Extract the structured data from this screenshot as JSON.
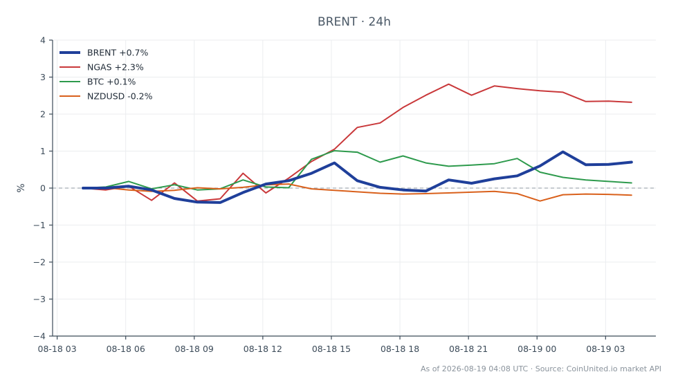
{
  "chart_data": {
    "type": "line",
    "title": "BRENT · 24h",
    "ylabel": "%",
    "xlabel": "",
    "ylim": [
      -4,
      4
    ],
    "y_ticks": [
      -4,
      -3,
      -2,
      -1,
      0,
      1,
      2,
      3,
      4
    ],
    "y_tick_labels": [
      "−4",
      "−3",
      "−2",
      "−1",
      "0",
      "1",
      "2",
      "3",
      "4"
    ],
    "x_tick_labels": [
      "08-18 03",
      "08-18 06",
      "08-18 09",
      "08-18 12",
      "08-18 15",
      "08-18 18",
      "08-18 21",
      "08-19 00",
      "08-19 03"
    ],
    "x_ticks": [
      "2026-08-18 03:00",
      "2026-08-18 06:00",
      "2026-08-18 09:00",
      "2026-08-18 12:00",
      "2026-08-18 15:00",
      "2026-08-18 18:00",
      "2026-08-18 21:00",
      "2026-08-19 00:00",
      "2026-08-19 03:00"
    ],
    "xlim": [
      "2026-08-18 02:48",
      "2026-08-19 05:12"
    ],
    "x": [
      "2026-08-18 04:08",
      "2026-08-18 05:08",
      "2026-08-18 06:08",
      "2026-08-18 07:08",
      "2026-08-18 08:08",
      "2026-08-18 09:08",
      "2026-08-18 10:08",
      "2026-08-18 11:08",
      "2026-08-18 12:08",
      "2026-08-18 13:08",
      "2026-08-18 14:08",
      "2026-08-18 15:08",
      "2026-08-18 16:08",
      "2026-08-18 17:08",
      "2026-08-18 18:08",
      "2026-08-18 19:08",
      "2026-08-18 20:08",
      "2026-08-18 21:08",
      "2026-08-18 22:08",
      "2026-08-18 23:08",
      "2026-08-19 00:08",
      "2026-08-19 01:08",
      "2026-08-19 02:08",
      "2026-08-19 03:08",
      "2026-08-19 04:08"
    ],
    "series": [
      {
        "name": "BRENT +0.7%",
        "color": "#1f3f9a",
        "width": 4,
        "values": [
          0.0,
          0.0,
          0.05,
          -0.05,
          -0.28,
          -0.38,
          -0.39,
          -0.12,
          0.11,
          0.2,
          0.4,
          0.68,
          0.2,
          0.02,
          -0.05,
          -0.08,
          0.22,
          0.13,
          0.25,
          0.33,
          0.6,
          0.98,
          0.63,
          0.64,
          0.7
        ]
      },
      {
        "name": "NGAS +2.3%",
        "color": "#c9383a",
        "width": 2,
        "values": [
          0.0,
          -0.05,
          0.05,
          -0.33,
          0.14,
          -0.35,
          -0.29,
          0.4,
          -0.13,
          0.27,
          0.72,
          1.05,
          1.64,
          1.76,
          2.18,
          2.51,
          2.81,
          2.51,
          2.76,
          2.69,
          2.63,
          2.59,
          2.34,
          2.35,
          2.32
        ]
      },
      {
        "name": "BTC +0.1%",
        "color": "#2d9a4c",
        "width": 2,
        "values": [
          0.0,
          0.03,
          0.18,
          -0.02,
          0.09,
          -0.05,
          -0.02,
          0.22,
          0.03,
          0.01,
          0.78,
          1.01,
          0.97,
          0.7,
          0.87,
          0.68,
          0.59,
          0.62,
          0.66,
          0.8,
          0.43,
          0.29,
          0.22,
          0.18,
          0.14
        ]
      },
      {
        "name": "NZDUSD -0.2%",
        "color": "#d9601b",
        "width": 2,
        "values": [
          0.01,
          0.01,
          -0.05,
          -0.09,
          -0.06,
          0.01,
          -0.02,
          0.02,
          0.09,
          0.11,
          -0.02,
          -0.06,
          -0.1,
          -0.14,
          -0.16,
          -0.15,
          -0.13,
          -0.11,
          -0.09,
          -0.15,
          -0.35,
          -0.18,
          -0.16,
          -0.17,
          -0.19
        ]
      }
    ],
    "legend_placement": "top-left",
    "grid": true,
    "zero_line": "dashed"
  },
  "footer": {
    "text": "As of 2026-08-19 04:08 UTC · Source: CoinUnited.io market API"
  }
}
